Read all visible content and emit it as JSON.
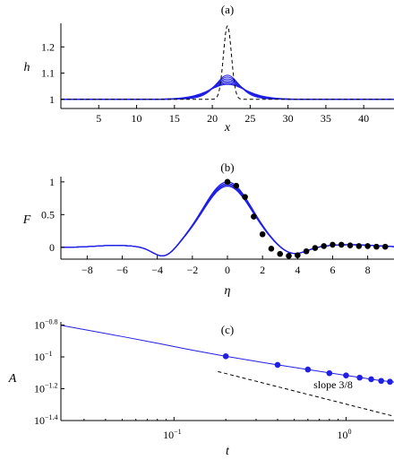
{
  "chart_data": [
    {
      "panel": "(a)",
      "type": "line",
      "xlabel": "x",
      "ylabel": "h",
      "xlim": [
        0,
        44
      ],
      "ylim": [
        0.965,
        1.29
      ],
      "xticks": [
        5,
        10,
        15,
        20,
        25,
        30,
        35,
        40
      ],
      "xtick_labels": [
        "5",
        "10",
        "15",
        "20",
        "25",
        "30",
        "35",
        "40"
      ],
      "yticks": [
        1,
        1.1,
        1.2
      ],
      "ytick_labels": [
        "1",
        "1.1",
        "1.2"
      ],
      "initial_profile": {
        "style": "dashed",
        "color": "#000000",
        "center": 22,
        "amplitude": 0.28,
        "width": 0.75
      },
      "evolving_profiles": {
        "color": "#1f1fe6",
        "center": 22,
        "amplitudes": [
          0.092,
          0.085,
          0.078,
          0.072,
          0.066,
          0.061,
          0.057
        ],
        "widths": [
          2.1,
          2.3,
          2.5,
          2.7,
          2.9,
          3.1,
          3.3
        ]
      }
    },
    {
      "panel": "(b)",
      "type": "line",
      "xlabel": "η",
      "ylabel": "F",
      "xlim": [
        -9.5,
        9.5
      ],
      "ylim": [
        -0.18,
        1.08
      ],
      "xticks": [
        -8,
        -6,
        -4,
        -2,
        0,
        2,
        4,
        6,
        8
      ],
      "xtick_labels": [
        "−8",
        "−6",
        "−4",
        "−2",
        "0",
        "2",
        "4",
        "6",
        "8"
      ],
      "yticks": [
        0,
        0.5,
        1
      ],
      "ytick_labels": [
        "0",
        "0.5",
        "1"
      ],
      "curves": [
        {
          "color": "#1f1fe6",
          "peak": 1.0
        },
        {
          "color": "#1f1fe6",
          "peak": 0.975
        },
        {
          "color": "#1f1fe6",
          "peak": 0.955
        },
        {
          "color": "#1f1fe6",
          "peak": 0.935
        }
      ],
      "markers": {
        "color": "#000000",
        "x": [
          0,
          0.5,
          1,
          1.5,
          2,
          2.5,
          3,
          3.5,
          4,
          4.5,
          5,
          5.5,
          6,
          6.5,
          7,
          7.5,
          8,
          8.5,
          9
        ],
        "y": [
          1.0,
          0.94,
          0.77,
          0.47,
          0.2,
          -0.02,
          -0.1,
          -0.13,
          -0.12,
          -0.06,
          -0.01,
          0.02,
          0.04,
          0.04,
          0.03,
          0.02,
          0.02,
          0.01,
          0.01
        ]
      }
    },
    {
      "panel": "(c)",
      "type": "line",
      "xscale": "log",
      "yscale": "log",
      "xlabel": "t",
      "ylabel": "A",
      "xlim": [
        0.022,
        1.9
      ],
      "ylim": [
        -1.4,
        -0.78
      ],
      "xticks": [
        0.1,
        1
      ],
      "xtick_base_labels": [
        "10",
        "10"
      ],
      "xtick_exponent_labels": [
        "−1",
        "0"
      ],
      "yticks": [
        -1.4,
        -1.2,
        -1.0,
        -0.8
      ],
      "ytick_base_labels": [
        "10",
        "10",
        "10",
        "10"
      ],
      "ytick_exponent_labels": [
        "−1.4",
        "−1.2",
        "−1",
        "−0.8"
      ],
      "series": [
        {
          "style": "line",
          "color": "#1f1fe6",
          "t": [
            0.022,
            0.03,
            0.05,
            0.08,
            0.12,
            0.2,
            0.35,
            0.6,
            1.0,
            1.5,
            1.9
          ],
          "A": [
            0.1581,
            0.1486,
            0.1343,
            0.1219,
            0.1117,
            0.1009,
            0.0912,
            0.0833,
            0.0765,
            0.0716,
            0.0694
          ]
        },
        {
          "style": "markers",
          "color": "#1f1fe6",
          "t": [
            0.2,
            0.4,
            0.6,
            0.8,
            1.0,
            1.2,
            1.4,
            1.6,
            1.8
          ],
          "A": [
            0.1009,
            0.0891,
            0.0833,
            0.079,
            0.0765,
            0.0741,
            0.0724,
            0.0707,
            0.0698
          ]
        },
        {
          "style": "dashed",
          "color": "#000000",
          "t": [
            0.18,
            1.85
          ],
          "log10A": [
            -1.092,
            -1.37
          ]
        }
      ],
      "annotation": "slope 3/8"
    }
  ]
}
